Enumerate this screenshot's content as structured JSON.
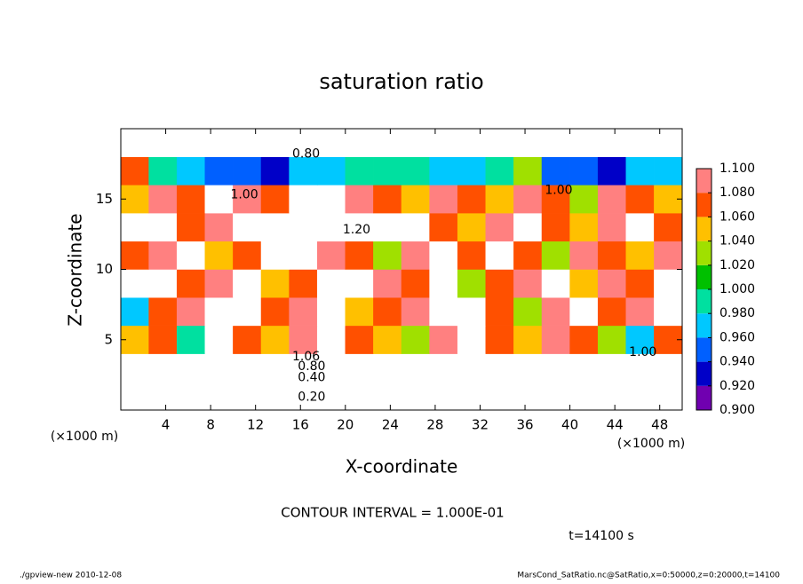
{
  "chart_data": {
    "type": "contour",
    "title": "saturation ratio",
    "xlabel": "X-coordinate",
    "ylabel": "Z-coordinate",
    "xunit": "(×1000 m)",
    "yunit": "(×1000 m)",
    "interval_note": "CONTOUR INTERVAL = 1.000E-01",
    "time_note": "t=14100 s",
    "footer_left": "./gpview-new   2010-12-08",
    "footer_right": "MarsCond_SatRatio.nc@SatRatio,x=0:50000,z=0:20000,t=14100",
    "xlim": [
      0,
      50
    ],
    "ylim": [
      0,
      20
    ],
    "xticks": [
      4,
      8,
      12,
      16,
      20,
      24,
      28,
      32,
      36,
      40,
      44,
      48
    ],
    "yticks": [
      5,
      10,
      15
    ],
    "xbins": [
      0,
      2.5,
      5,
      7.5,
      10,
      12.5,
      15,
      17.5,
      20,
      22.5,
      25,
      27.5,
      30,
      32.5,
      35,
      37.5,
      40,
      42.5,
      45,
      47.5,
      50
    ],
    "zbins": [
      0,
      2,
      4,
      6,
      8,
      10,
      12,
      14,
      16,
      18,
      20
    ],
    "values": [
      [
        0.3,
        0.3,
        0.3,
        0.3,
        0.3,
        0.3,
        0.3,
        0.3,
        0.3,
        0.3,
        0.3,
        0.3,
        0.3,
        0.3,
        0.3,
        0.3,
        0.3,
        0.3,
        0.3,
        0.3
      ],
      [
        0.7,
        0.7,
        0.7,
        0.7,
        0.7,
        0.7,
        0.7,
        0.7,
        0.7,
        0.7,
        0.7,
        0.7,
        0.7,
        0.7,
        0.7,
        0.7,
        0.7,
        0.7,
        0.7,
        0.7
      ],
      [
        1.04,
        1.06,
        0.98,
        1.12,
        1.06,
        1.04,
        1.08,
        1.12,
        1.06,
        1.04,
        1.02,
        1.08,
        1.12,
        1.06,
        1.04,
        1.08,
        1.06,
        1.02,
        0.96,
        1.06
      ],
      [
        0.96,
        1.06,
        1.08,
        1.12,
        1.14,
        1.06,
        1.08,
        1.12,
        1.04,
        1.06,
        1.08,
        1.12,
        1.14,
        1.06,
        1.02,
        1.08,
        1.12,
        1.06,
        1.08,
        1.12
      ],
      [
        1.12,
        1.14,
        1.06,
        1.08,
        1.12,
        1.04,
        1.06,
        1.12,
        1.14,
        1.08,
        1.06,
        1.12,
        1.02,
        1.06,
        1.08,
        1.12,
        1.04,
        1.08,
        1.06,
        1.12
      ],
      [
        1.06,
        1.08,
        1.12,
        1.04,
        1.06,
        1.12,
        1.14,
        1.08,
        1.06,
        1.02,
        1.08,
        1.12,
        1.06,
        1.14,
        1.06,
        1.02,
        1.08,
        1.06,
        1.04,
        1.08
      ],
      [
        1.12,
        1.14,
        1.06,
        1.08,
        1.12,
        1.14,
        1.16,
        1.12,
        1.14,
        1.18,
        1.12,
        1.06,
        1.04,
        1.08,
        1.12,
        1.06,
        1.04,
        1.08,
        1.12,
        1.06
      ],
      [
        1.04,
        1.08,
        1.06,
        1.12,
        1.08,
        1.06,
        1.12,
        1.14,
        1.08,
        1.06,
        1.04,
        1.08,
        1.06,
        1.04,
        1.08,
        1.06,
        1.02,
        1.08,
        1.06,
        1.04
      ],
      [
        1.06,
        0.98,
        0.96,
        0.94,
        0.95,
        0.93,
        0.96,
        0.97,
        0.98,
        0.99,
        0.98,
        0.97,
        0.96,
        0.98,
        1.02,
        0.95,
        0.94,
        0.93,
        0.96,
        0.97
      ],
      [
        0.7,
        0.7,
        0.7,
        0.7,
        0.7,
        0.7,
        0.7,
        0.7,
        0.7,
        0.7,
        0.7,
        0.7,
        0.7,
        0.7,
        0.7,
        0.7,
        0.7,
        0.7,
        0.7,
        0.7
      ]
    ],
    "levels": [
      {
        "value": 0.9,
        "label": "0.900"
      },
      {
        "value": 0.92,
        "label": "0.920"
      },
      {
        "value": 0.94,
        "label": "0.940"
      },
      {
        "value": 0.96,
        "label": "0.960"
      },
      {
        "value": 0.98,
        "label": "0.980"
      },
      {
        "value": 1.0,
        "label": "1.000"
      },
      {
        "value": 1.02,
        "label": "1.020"
      },
      {
        "value": 1.04,
        "label": "1.040"
      },
      {
        "value": 1.06,
        "label": "1.060"
      },
      {
        "value": 1.08,
        "label": "1.080"
      },
      {
        "value": 1.1,
        "label": "1.100"
      }
    ],
    "colors": [
      "#7000b0",
      "#0000c8",
      "#0060ff",
      "#00c8ff",
      "#00e0a0",
      "#00c000",
      "#a0e000",
      "#ffc000",
      "#ff5000",
      "#ff8080"
    ],
    "contour_labels": [
      {
        "label": "0.80",
        "x": 16.5,
        "z": 18.2
      },
      {
        "label": "1.00",
        "x": 11,
        "z": 15.3
      },
      {
        "label": "1.20",
        "x": 21,
        "z": 12.8
      },
      {
        "label": "1.00",
        "x": 39,
        "z": 15.6
      },
      {
        "label": "1.06",
        "x": 16.5,
        "z": 3.8
      },
      {
        "label": "0.80",
        "x": 17,
        "z": 3.1
      },
      {
        "label": "0.40",
        "x": 17,
        "z": 2.3
      },
      {
        "label": "0.20",
        "x": 17,
        "z": 0.9
      },
      {
        "label": "1.00",
        "x": 46.5,
        "z": 4.1
      }
    ]
  }
}
